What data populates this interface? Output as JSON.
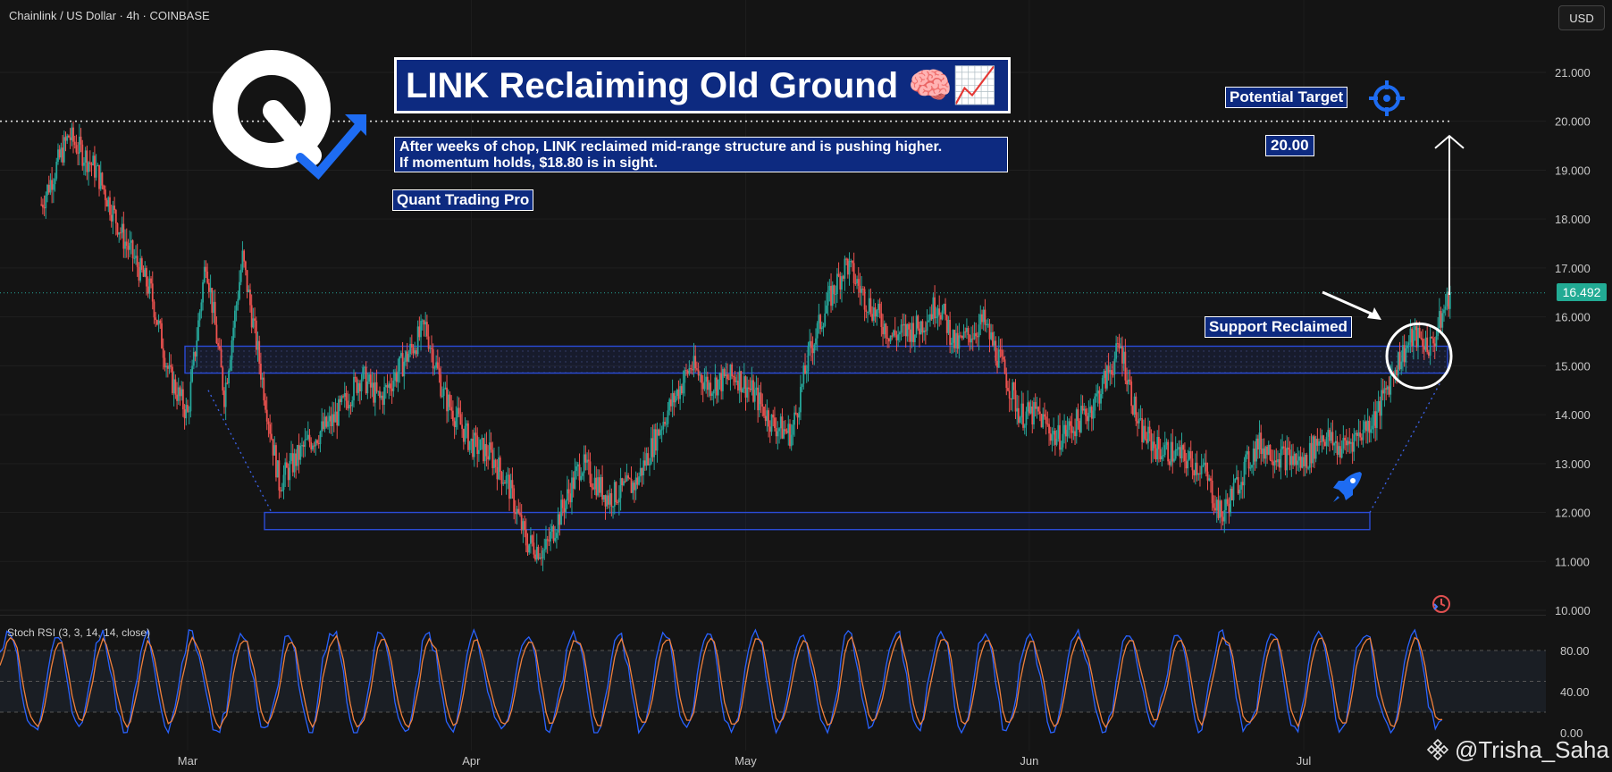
{
  "header": {
    "symbol": "Chainlink / US Dollar · 4h · COINBASE",
    "currency_button": "USD"
  },
  "annotations": {
    "title": "LINK Reclaiming Old Ground 🧠📈",
    "description_line1": "After weeks of chop, LINK reclaimed mid-range structure and is pushing higher.",
    "description_line2": "If momentum holds, $18.80 is in sight.",
    "brand": "Quant Trading Pro",
    "target_label": "Potential Target",
    "target_value": "20.00",
    "support_label": "Support Reclaimed",
    "last_price": "16.492",
    "watermark": "@Trisha_Saha"
  },
  "colors": {
    "up": "#26a69a",
    "down": "#ef5350",
    "zone": "#2a4bd7",
    "rsi_k": "#2962ff",
    "rsi_d": "#f0803c",
    "accent": "#1e6cf2",
    "brand_box": "#0d2a80"
  },
  "chart_data": [
    {
      "type": "candlestick",
      "symbol": "LINK/USD",
      "timeframe": "4h",
      "exchange": "COINBASE",
      "ylim": [
        10.0,
        21.5
      ],
      "y_ticks": [
        "10.000",
        "11.000",
        "12.000",
        "13.000",
        "14.000",
        "15.000",
        "16.000",
        "17.000",
        "18.000",
        "19.000",
        "20.000",
        "21.000"
      ],
      "x_ticks": [
        "Mar",
        "Apr",
        "May",
        "Jun",
        "Jul"
      ],
      "last_price": 16.492,
      "target_level": 20.0,
      "resistance_zone": [
        14.85,
        15.4
      ],
      "support_zone": [
        11.65,
        12.0
      ],
      "price_path": [
        [
          "Feb 13",
          18.3
        ],
        [
          "Feb 16",
          19.7
        ],
        [
          "Feb 19",
          19.0
        ],
        [
          "Feb 22",
          17.6
        ],
        [
          "Feb 25",
          16.5
        ],
        [
          "Feb 27",
          14.8
        ],
        [
          "Mar 1",
          14.0
        ],
        [
          "Mar 3",
          17.2
        ],
        [
          "Mar 5",
          14.4
        ],
        [
          "Mar 7",
          17.2
        ],
        [
          "Mar 9",
          14.9
        ],
        [
          "Mar 11",
          12.6
        ],
        [
          "Mar 14",
          13.4
        ],
        [
          "Mar 17",
          13.9
        ],
        [
          "Mar 20",
          14.8
        ],
        [
          "Mar 22",
          14.3
        ],
        [
          "Mar 25",
          15.2
        ],
        [
          "Mar 27",
          15.8
        ],
        [
          "Mar 29",
          14.4
        ],
        [
          "Apr 1",
          13.4
        ],
        [
          "Apr 3",
          13.2
        ],
        [
          "Apr 5",
          12.6
        ],
        [
          "Apr 7",
          11.4
        ],
        [
          "Apr 9",
          11.2
        ],
        [
          "Apr 11",
          12.1
        ],
        [
          "Apr 13",
          13.0
        ],
        [
          "Apr 16",
          12.3
        ],
        [
          "Apr 19",
          12.6
        ],
        [
          "Apr 22",
          13.9
        ],
        [
          "Apr 25",
          15.0
        ],
        [
          "Apr 27",
          14.6
        ],
        [
          "Apr 30",
          14.8
        ],
        [
          "May 2",
          14.4
        ],
        [
          "May 4",
          13.8
        ],
        [
          "May 6",
          13.6
        ],
        [
          "May 8",
          15.3
        ],
        [
          "May 10",
          16.3
        ],
        [
          "May 12",
          17.1
        ],
        [
          "May 14",
          16.4
        ],
        [
          "May 17",
          15.6
        ],
        [
          "May 20",
          15.8
        ],
        [
          "May 22",
          16.3
        ],
        [
          "May 24",
          15.4
        ],
        [
          "May 27",
          15.9
        ],
        [
          "May 29",
          15.0
        ],
        [
          "May 31",
          14.0
        ],
        [
          "Jun 2",
          14.0
        ],
        [
          "Jun 4",
          13.5
        ],
        [
          "Jun 6",
          13.8
        ],
        [
          "Jun 8",
          14.2
        ],
        [
          "Jun 11",
          15.4
        ],
        [
          "Jun 13",
          13.7
        ],
        [
          "Jun 15",
          13.3
        ],
        [
          "Jun 17",
          13.2
        ],
        [
          "Jun 20",
          12.9
        ],
        [
          "Jun 22",
          11.9
        ],
        [
          "Jun 24",
          12.7
        ],
        [
          "Jun 26",
          13.4
        ],
        [
          "Jun 28",
          13.2
        ],
        [
          "Jul 1",
          13.0
        ],
        [
          "Jul 3",
          13.6
        ],
        [
          "Jul 5",
          13.3
        ],
        [
          "Jul 7",
          13.6
        ],
        [
          "Jul 9",
          14.0
        ],
        [
          "Jul 11",
          15.0
        ],
        [
          "Jul 13",
          15.6
        ],
        [
          "Jul 15",
          15.4
        ],
        [
          "Jul 17",
          16.49
        ]
      ]
    },
    {
      "type": "line",
      "title": "Stoch RSI (3, 3, 14, 14, close)",
      "ylim": [
        0,
        100
      ],
      "y_ticks": [
        "0.00",
        "40.00",
        "80.00"
      ],
      "bands": [
        20,
        50,
        80
      ],
      "series": [
        {
          "name": "K",
          "color": "#2962ff"
        },
        {
          "name": "D",
          "color": "#f0803c"
        }
      ],
      "sample_oscillation": [
        5,
        30,
        80,
        95,
        90,
        60,
        25,
        5,
        10,
        55,
        90,
        95,
        70,
        30,
        8,
        20,
        70,
        92,
        85,
        40,
        10,
        5,
        45,
        88,
        96,
        80,
        35,
        8,
        15,
        65,
        95
      ]
    }
  ]
}
